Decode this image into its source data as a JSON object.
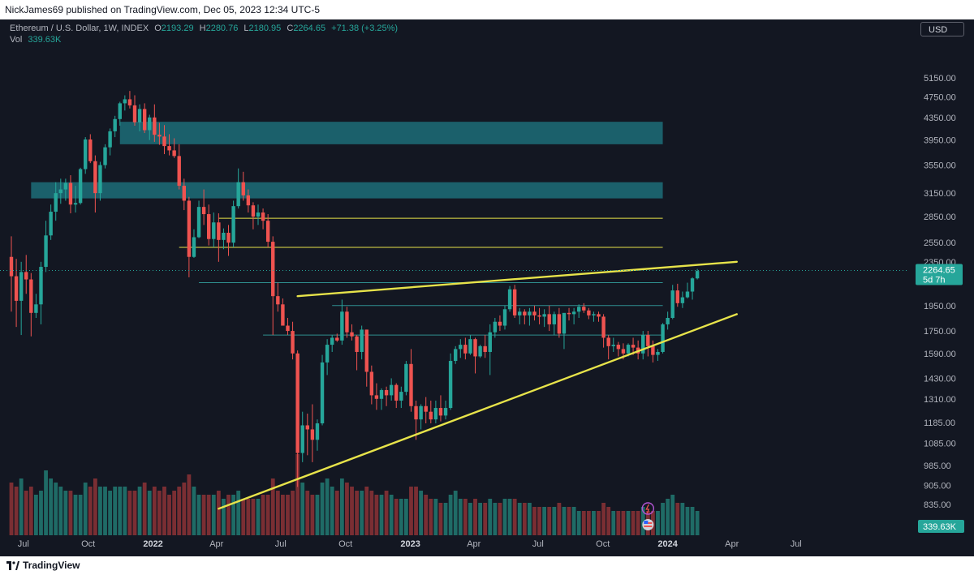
{
  "header": {
    "publisher_text": "NickJames69 published on TradingView.com, Dec 05, 2023 12:34 UTC-5"
  },
  "legend": {
    "symbol": "Ethereum / U.S. Dollar, 1W, INDEX",
    "open_label": "O",
    "open": "2193.29",
    "high_label": "H",
    "high": "2280.76",
    "low_label": "L",
    "low": "2180.95",
    "close_label": "C",
    "close": "2264.65",
    "change": "+71.38 (+3.25%)",
    "vol_label": "Vol",
    "vol": "339.63K"
  },
  "currency_button": "USD",
  "footer": {
    "brand": "TradingView"
  },
  "colors": {
    "bg": "#131722",
    "up": "#26a69a",
    "down": "#ef5350",
    "vol_up": "#1f6b66",
    "vol_down": "#7a2e33",
    "zone": "#1d6d78",
    "trend": "#e7e34a",
    "axis_text": "#b2b5be",
    "price_tag": "#26a69a"
  },
  "chart_data": {
    "type": "candlestick",
    "title": "Ethereum / U.S. Dollar, 1W, INDEX",
    "y_scale": "log",
    "ylim": [
      860,
      5600
    ],
    "y_ticks": [
      5150,
      4750,
      4350,
      3950,
      3550,
      3150,
      2850,
      2550,
      2350,
      1950,
      1750,
      1590,
      1430,
      1310,
      1185,
      1085,
      985,
      905,
      835
    ],
    "x_ticks": [
      {
        "label": "Jul",
        "date": "2021-07-01",
        "bold": false
      },
      {
        "label": "Oct",
        "date": "2021-10-01",
        "bold": false
      },
      {
        "label": "2022",
        "date": "2022-01-01",
        "bold": true
      },
      {
        "label": "Apr",
        "date": "2022-04-01",
        "bold": false
      },
      {
        "label": "Jul",
        "date": "2022-07-01",
        "bold": false
      },
      {
        "label": "Oct",
        "date": "2022-10-01",
        "bold": false
      },
      {
        "label": "2023",
        "date": "2023-01-01",
        "bold": true
      },
      {
        "label": "Apr",
        "date": "2023-04-01",
        "bold": false
      },
      {
        "label": "Jul",
        "date": "2023-07-01",
        "bold": false
      },
      {
        "label": "Oct",
        "date": "2023-10-01",
        "bold": false
      },
      {
        "label": "2024",
        "date": "2024-01-01",
        "bold": true
      },
      {
        "label": "Apr",
        "date": "2024-04-01",
        "bold": false
      },
      {
        "label": "Jul",
        "date": "2024-07-01",
        "bold": false
      }
    ],
    "last_price": {
      "value": 2264.65,
      "label": "2264.65",
      "countdown": "5d 7h"
    },
    "volume_label": "339.63K",
    "candles": {
      "start_date": "2021-06-14",
      "fields": [
        "open",
        "high",
        "low",
        "close",
        "volume"
      ],
      "ohlcv": [
        [
          2400,
          2620,
          1900,
          2210,
          13
        ],
        [
          2210,
          2380,
          1780,
          1990,
          12
        ],
        [
          1990,
          2350,
          1720,
          2250,
          14
        ],
        [
          2250,
          2420,
          2050,
          2180,
          11
        ],
        [
          2180,
          2240,
          1710,
          1890,
          12
        ],
        [
          1890,
          2050,
          1850,
          1960,
          10
        ],
        [
          1960,
          2350,
          1800,
          2300,
          11
        ],
        [
          2300,
          2800,
          2250,
          2630,
          16
        ],
        [
          2630,
          3000,
          2580,
          2910,
          14
        ],
        [
          2910,
          3300,
          2800,
          3150,
          13
        ],
        [
          3150,
          3350,
          3010,
          3200,
          12
        ],
        [
          3200,
          3350,
          3050,
          3290,
          11
        ],
        [
          3290,
          3400,
          2890,
          3000,
          11
        ],
        [
          3000,
          3250,
          2900,
          3020,
          10
        ],
        [
          3020,
          3510,
          3000,
          3490,
          10
        ],
        [
          3490,
          4000,
          3420,
          3960,
          13
        ],
        [
          3960,
          4050,
          3580,
          3610,
          12
        ],
        [
          3610,
          3700,
          2900,
          3150,
          14
        ],
        [
          3150,
          3600,
          3050,
          3550,
          12
        ],
        [
          3550,
          3880,
          3500,
          3830,
          12
        ],
        [
          3830,
          4150,
          3700,
          4100,
          11
        ],
        [
          4100,
          4380,
          4000,
          4320,
          12
        ],
        [
          4320,
          4650,
          4200,
          4620,
          12
        ],
        [
          4620,
          4780,
          4480,
          4700,
          12
        ],
        [
          4700,
          4870,
          4520,
          4580,
          11
        ],
        [
          4580,
          4780,
          4200,
          4260,
          11
        ],
        [
          4260,
          4600,
          4100,
          4510,
          12
        ],
        [
          4510,
          4620,
          4070,
          4120,
          13
        ],
        [
          4120,
          4400,
          3950,
          4350,
          11
        ],
        [
          4350,
          4600,
          3920,
          4040,
          12
        ],
        [
          4040,
          4250,
          3870,
          4010,
          11
        ],
        [
          4010,
          4210,
          3720,
          3850,
          12
        ],
        [
          3850,
          4050,
          3700,
          3780,
          10
        ],
        [
          3780,
          3980,
          3660,
          3690,
          11
        ],
        [
          3690,
          3880,
          3200,
          3250,
          12
        ],
        [
          3250,
          3350,
          2930,
          3050,
          13
        ],
        [
          3050,
          3100,
          2200,
          2400,
          15
        ],
        [
          2400,
          2700,
          2390,
          2610,
          12
        ],
        [
          2610,
          3050,
          2600,
          2970,
          10
        ],
        [
          2970,
          3200,
          2750,
          2880,
          10
        ],
        [
          2880,
          3000,
          2520,
          2590,
          10
        ],
        [
          2590,
          2900,
          2500,
          2780,
          10
        ],
        [
          2780,
          2890,
          2350,
          2580,
          11
        ],
        [
          2580,
          2710,
          2480,
          2660,
          9
        ],
        [
          2660,
          2750,
          2410,
          2550,
          10
        ],
        [
          2550,
          3050,
          2500,
          2980,
          10
        ],
        [
          2980,
          3500,
          2950,
          3300,
          11
        ],
        [
          3300,
          3450,
          3050,
          3120,
          9
        ],
        [
          3120,
          3200,
          2900,
          2990,
          9
        ],
        [
          2990,
          3030,
          2700,
          2850,
          9
        ],
        [
          2850,
          3000,
          2750,
          2900,
          9
        ],
        [
          2900,
          2950,
          2700,
          2800,
          10
        ],
        [
          2800,
          2880,
          2500,
          2560,
          10
        ],
        [
          2560,
          2620,
          1720,
          2030,
          14
        ],
        [
          2030,
          2150,
          1900,
          1960,
          11
        ],
        [
          1960,
          2010,
          1850,
          1790,
          10
        ],
        [
          1790,
          1850,
          1720,
          1750,
          10
        ],
        [
          1750,
          1820,
          1550,
          1590,
          11
        ],
        [
          1590,
          1610,
          900,
          1040,
          20
        ],
        [
          1040,
          1240,
          1000,
          1170,
          13
        ],
        [
          1170,
          1230,
          1030,
          1150,
          11
        ],
        [
          1150,
          1280,
          1000,
          1100,
          10
        ],
        [
          1100,
          1200,
          1050,
          1180,
          10
        ],
        [
          1180,
          1580,
          1170,
          1530,
          13
        ],
        [
          1530,
          1690,
          1450,
          1650,
          14
        ],
        [
          1650,
          1720,
          1600,
          1700,
          12
        ],
        [
          1700,
          1730,
          1670,
          1680,
          11
        ],
        [
          1680,
          2000,
          1650,
          1900,
          14
        ],
        [
          1900,
          1940,
          1700,
          1740,
          13
        ],
        [
          1740,
          1800,
          1680,
          1710,
          12
        ],
        [
          1710,
          1720,
          1480,
          1600,
          11
        ],
        [
          1600,
          1790,
          1550,
          1760,
          11
        ],
        [
          1760,
          1760,
          1380,
          1470,
          12
        ],
        [
          1470,
          1510,
          1280,
          1330,
          11
        ],
        [
          1330,
          1400,
          1250,
          1310,
          10
        ],
        [
          1310,
          1370,
          1250,
          1360,
          10
        ],
        [
          1360,
          1380,
          1270,
          1330,
          11
        ],
        [
          1330,
          1430,
          1300,
          1390,
          10
        ],
        [
          1390,
          1400,
          1260,
          1300,
          9
        ],
        [
          1300,
          1380,
          1260,
          1350,
          9
        ],
        [
          1350,
          1540,
          1330,
          1520,
          9
        ],
        [
          1520,
          1620,
          1240,
          1270,
          12
        ],
        [
          1270,
          1300,
          1100,
          1200,
          12
        ],
        [
          1200,
          1280,
          1150,
          1270,
          11
        ],
        [
          1270,
          1320,
          1180,
          1240,
          10
        ],
        [
          1240,
          1300,
          1180,
          1200,
          9
        ],
        [
          1200,
          1300,
          1180,
          1260,
          9
        ],
        [
          1260,
          1330,
          1190,
          1220,
          8
        ],
        [
          1220,
          1300,
          1200,
          1260,
          8
        ],
        [
          1260,
          1590,
          1250,
          1540,
          10
        ],
        [
          1540,
          1640,
          1520,
          1620,
          11
        ],
        [
          1620,
          1690,
          1560,
          1650,
          9
        ],
        [
          1650,
          1700,
          1550,
          1590,
          9
        ],
        [
          1590,
          1720,
          1580,
          1690,
          8
        ],
        [
          1690,
          1700,
          1460,
          1570,
          9
        ],
        [
          1570,
          1650,
          1560,
          1640,
          8
        ],
        [
          1640,
          1720,
          1560,
          1600,
          8
        ],
        [
          1600,
          1800,
          1450,
          1740,
          9
        ],
        [
          1740,
          1850,
          1700,
          1820,
          8
        ],
        [
          1820,
          1870,
          1750,
          1790,
          8
        ],
        [
          1790,
          1950,
          1760,
          1920,
          9
        ],
        [
          1920,
          2120,
          1900,
          2090,
          9
        ],
        [
          2090,
          2130,
          1850,
          1870,
          9
        ],
        [
          1870,
          1930,
          1800,
          1900,
          8
        ],
        [
          1900,
          1920,
          1800,
          1870,
          8
        ],
        [
          1870,
          1930,
          1790,
          1900,
          8
        ],
        [
          1900,
          1950,
          1830,
          1870,
          7
        ],
        [
          1870,
          1930,
          1800,
          1860,
          7
        ],
        [
          1860,
          1920,
          1780,
          1880,
          7
        ],
        [
          1880,
          1950,
          1750,
          1800,
          7
        ],
        [
          1800,
          1900,
          1720,
          1880,
          7
        ],
        [
          1880,
          1930,
          1700,
          1730,
          8
        ],
        [
          1730,
          1780,
          1620,
          1890,
          7
        ],
        [
          1890,
          1930,
          1830,
          1880,
          7
        ],
        [
          1880,
          1930,
          1800,
          1900,
          7
        ],
        [
          1900,
          1960,
          1850,
          1940,
          6
        ],
        [
          1940,
          1970,
          1890,
          1910,
          6
        ],
        [
          1910,
          1930,
          1840,
          1870,
          6
        ],
        [
          1870,
          1900,
          1820,
          1880,
          6
        ],
        [
          1880,
          1900,
          1820,
          1860,
          6
        ],
        [
          1860,
          1880,
          1630,
          1700,
          8
        ],
        [
          1700,
          1720,
          1550,
          1640,
          7
        ],
        [
          1640,
          1700,
          1600,
          1650,
          6
        ],
        [
          1650,
          1670,
          1570,
          1620,
          6
        ],
        [
          1620,
          1660,
          1550,
          1590,
          6
        ],
        [
          1590,
          1660,
          1570,
          1650,
          6
        ],
        [
          1650,
          1700,
          1580,
          1630,
          6
        ],
        [
          1630,
          1680,
          1550,
          1590,
          6
        ],
        [
          1590,
          1750,
          1550,
          1720,
          7
        ],
        [
          1720,
          1750,
          1570,
          1640,
          6
        ],
        [
          1640,
          1680,
          1530,
          1580,
          6
        ],
        [
          1580,
          1620,
          1540,
          1600,
          6
        ],
        [
          1600,
          1810,
          1590,
          1800,
          8
        ],
        [
          1800,
          1900,
          1760,
          1850,
          9
        ],
        [
          1850,
          2130,
          1840,
          2080,
          10
        ],
        [
          2080,
          2140,
          1940,
          1970,
          8
        ],
        [
          1970,
          2070,
          1930,
          2020,
          8
        ],
        [
          2020,
          2150,
          2010,
          2070,
          7
        ],
        [
          2070,
          2200,
          2000,
          2190,
          7
        ],
        [
          2190,
          2280,
          2180,
          2260,
          6
        ]
      ]
    },
    "zones": [
      {
        "from_date": "2021-11-15",
        "to_date": "2023-12-25",
        "low": 3880,
        "high": 4270
      },
      {
        "from_date": "2021-07-12",
        "to_date": "2023-12-25",
        "low": 3080,
        "high": 3300
      }
    ],
    "horizontal_lines": [
      {
        "kind": "yellow",
        "from_date": "2022-04-04",
        "to_date": "2023-12-25",
        "value": 2830
      },
      {
        "kind": "yellow",
        "from_date": "2022-02-07",
        "to_date": "2023-12-25",
        "value": 2500
      },
      {
        "kind": "teal",
        "from_date": "2022-03-07",
        "to_date": "2023-12-25",
        "value": 2150
      },
      {
        "kind": "teal",
        "from_date": "2022-09-12",
        "to_date": "2023-12-25",
        "value": 1950
      },
      {
        "kind": "teal",
        "from_date": "2022-06-06",
        "to_date": "2023-12-25",
        "value": 1720
      }
    ],
    "trendlines": [
      {
        "from_date": "2022-07-25",
        "from_value": 2030,
        "to_date": "2024-04-08",
        "to_value": 2350
      },
      {
        "from_date": "2022-04-04",
        "from_value": 820,
        "to_date": "2024-04-08",
        "to_value": 1880
      }
    ]
  }
}
